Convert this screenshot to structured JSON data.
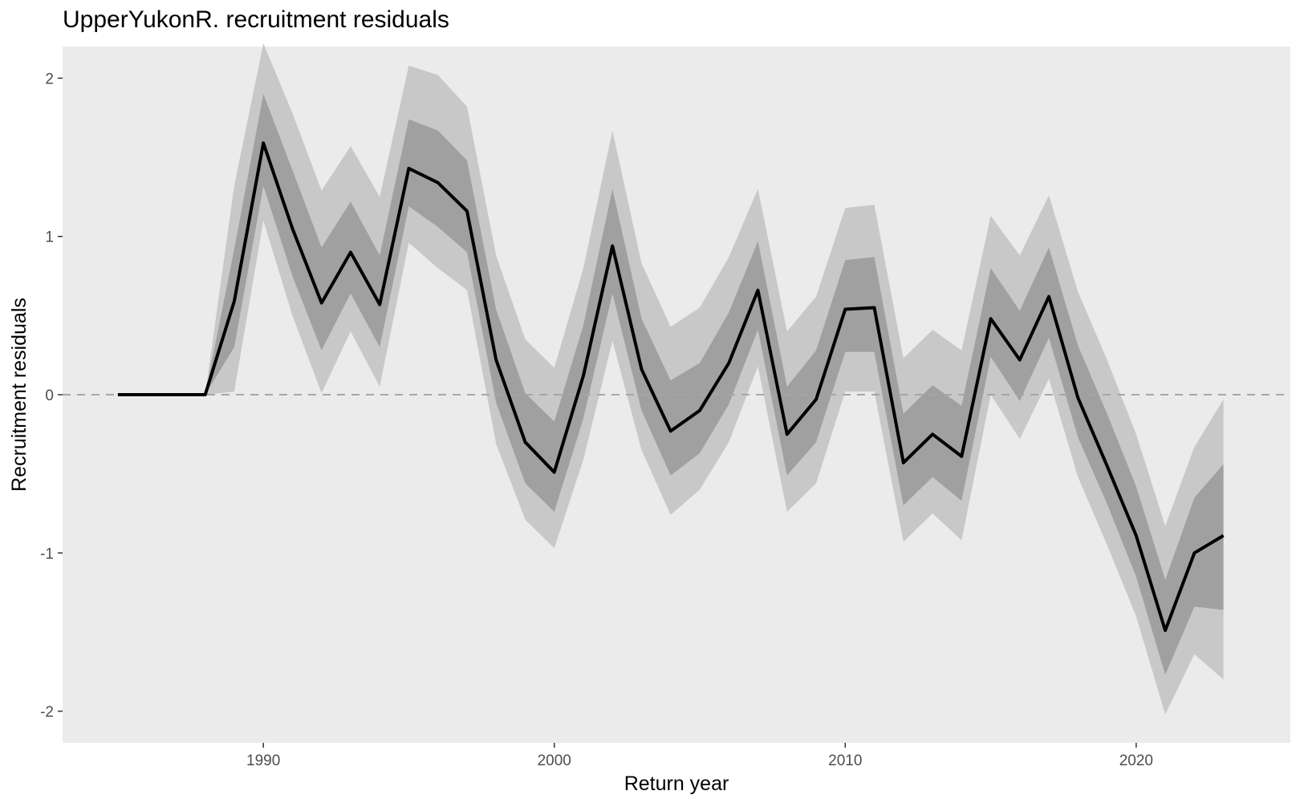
{
  "chart_data": {
    "type": "line",
    "title": "UpperYukonR. recruitment residuals",
    "xlabel": "Return year",
    "ylabel": "Recruitment residuals",
    "xlim": [
      1983.1,
      2025.3
    ],
    "ylim": [
      -2.2,
      2.2
    ],
    "xticks": [
      1990,
      2000,
      2010,
      2020
    ],
    "yticks": [
      -2,
      -1,
      0,
      1,
      2
    ],
    "reference_line": 0,
    "grid": false,
    "colors": {
      "panel": "#ebebeb",
      "outer_band": "#c8c8c8",
      "inner_band": "#a0a0a0",
      "line": "#000000",
      "reference": "#a6a6a6",
      "tick_text": "#4d4d4d"
    },
    "series": [
      {
        "x": [
          1985,
          1986,
          1987,
          1988,
          1989,
          1990,
          1991,
          1992,
          1993,
          1994,
          1995,
          1996,
          1997,
          1998,
          1999,
          2000,
          2001,
          2002,
          2003,
          2004,
          2005,
          2006,
          2007,
          2008,
          2009,
          2010,
          2011,
          2012,
          2013,
          2014,
          2015,
          2016,
          2017,
          2018,
          2019,
          2020,
          2021,
          2022,
          2023
        ],
        "median": [
          0,
          0,
          0,
          0,
          0.59,
          1.59,
          1.05,
          0.58,
          0.9,
          0.57,
          1.43,
          1.34,
          1.16,
          0.22,
          -0.3,
          -0.49,
          0.12,
          0.94,
          0.16,
          -0.23,
          -0.1,
          0.2,
          0.66,
          -0.25,
          -0.03,
          0.54,
          0.55,
          -0.43,
          -0.25,
          -0.39,
          0.48,
          0.22,
          0.62,
          -0.02,
          -0.45,
          -0.89,
          -1.49,
          -1.0,
          -0.89
        ],
        "outer_lo": [
          0,
          0,
          0,
          0,
          0.02,
          1.1,
          0.5,
          0.01,
          0.4,
          0.05,
          0.96,
          0.8,
          0.66,
          -0.31,
          -0.79,
          -0.97,
          -0.41,
          0.34,
          -0.35,
          -0.76,
          -0.6,
          -0.3,
          0.18,
          -0.74,
          -0.56,
          0.02,
          0.02,
          -0.93,
          -0.75,
          -0.92,
          0.0,
          -0.28,
          0.1,
          -0.52,
          -0.95,
          -1.4,
          -2.02,
          -1.64,
          -1.8
        ],
        "outer_hi": [
          0,
          0,
          0,
          0,
          1.32,
          2.22,
          1.78,
          1.29,
          1.57,
          1.25,
          2.08,
          2.02,
          1.82,
          0.88,
          0.35,
          0.17,
          0.8,
          1.67,
          0.83,
          0.43,
          0.55,
          0.87,
          1.3,
          0.4,
          0.62,
          1.18,
          1.2,
          0.23,
          0.41,
          0.28,
          1.13,
          0.88,
          1.26,
          0.65,
          0.22,
          -0.25,
          -0.83,
          -0.33,
          -0.03
        ],
        "inner_lo": [
          0,
          0,
          0,
          0,
          0.3,
          1.32,
          0.75,
          0.28,
          0.64,
          0.3,
          1.19,
          1.06,
          0.9,
          -0.05,
          -0.56,
          -0.74,
          -0.15,
          0.64,
          -0.1,
          -0.51,
          -0.37,
          -0.06,
          0.41,
          -0.51,
          -0.3,
          0.27,
          0.27,
          -0.7,
          -0.52,
          -0.67,
          0.24,
          -0.04,
          0.36,
          -0.27,
          -0.69,
          -1.15,
          -1.77,
          -1.34,
          -1.36
        ],
        "inner_hi": [
          0,
          0,
          0,
          0,
          0.92,
          1.9,
          1.42,
          0.93,
          1.22,
          0.88,
          1.74,
          1.67,
          1.48,
          0.54,
          0.01,
          -0.17,
          0.44,
          1.3,
          0.48,
          0.09,
          0.2,
          0.52,
          0.97,
          0.05,
          0.28,
          0.85,
          0.87,
          -0.12,
          0.06,
          -0.07,
          0.8,
          0.53,
          0.93,
          0.31,
          -0.12,
          -0.58,
          -1.17,
          -0.65,
          -0.44
        ]
      }
    ]
  }
}
